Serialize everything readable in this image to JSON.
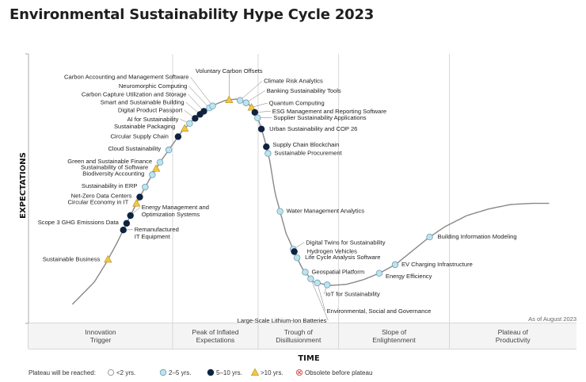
{
  "header": {
    "title": "Environmental Sustainability Hype Cycle 2023"
  },
  "chart_data": {
    "type": "hype-cycle",
    "xlabel": "TIME",
    "ylabel": "EXPECTATIONS",
    "as_of": "As of August 2023",
    "phases": [
      "Innovation Trigger",
      "Peak of Inflated Expectations",
      "Trough of Disillusionment",
      "Slope of Enlightenment",
      "Plateau of Productivity"
    ],
    "legend": {
      "title": "Plateau will be reached:",
      "items": [
        {
          "key": "lt2",
          "label": "<2 yrs."
        },
        {
          "key": "2to5",
          "label": "2–5 yrs."
        },
        {
          "key": "5to10",
          "label": "5–10 yrs."
        },
        {
          "key": "gt10",
          "label": ">10 yrs."
        },
        {
          "key": "obsolete",
          "label": "Obsolete before plateau"
        }
      ]
    },
    "colors": {
      "lt2": "#ffffff",
      "2to5": "#bfe3ee",
      "5to10": "#0e2340",
      "gt10": "#f2c744",
      "obsolete": "#e04444",
      "curve": "#888888"
    },
    "technologies": [
      {
        "name": "Sustainable Business",
        "t": 0.145,
        "class": "gt10"
      },
      {
        "name": "Remanufactured IT Equipment",
        "t": 0.173,
        "class": "5to10"
      },
      {
        "name": "Scope 3 GHG Emissions Data",
        "t": 0.179,
        "class": "5to10"
      },
      {
        "name": "Energy Management and Optimization Systems",
        "t": 0.186,
        "class": "5to10"
      },
      {
        "name": "Circular Economy in IT",
        "t": 0.197,
        "class": "gt10"
      },
      {
        "name": "Net-Zero Data Centers",
        "t": 0.203,
        "class": "5to10"
      },
      {
        "name": "Sustainability in ERP",
        "t": 0.213,
        "class": "2to5"
      },
      {
        "name": "Biodiversity Accounting",
        "t": 0.226,
        "class": "2to5"
      },
      {
        "name": "Sustainability of Software",
        "t": 0.233,
        "class": "gt10"
      },
      {
        "name": "Green and Sustainable Finance",
        "t": 0.24,
        "class": "2to5"
      },
      {
        "name": "Cloud Sustainability",
        "t": 0.256,
        "class": "2to5"
      },
      {
        "name": "Circular Supply Chain",
        "t": 0.273,
        "class": "5to10"
      },
      {
        "name": "Sustainable Packaging",
        "t": 0.285,
        "class": "gt10"
      },
      {
        "name": "AI for Sustainability",
        "t": 0.294,
        "class": "2to5"
      },
      {
        "name": "Digital Product Passport",
        "t": 0.304,
        "class": "5to10"
      },
      {
        "name": "Smart and Sustainable Building",
        "t": 0.313,
        "class": "5to10"
      },
      {
        "name": "Carbon Capture Utilization and Storage",
        "t": 0.32,
        "class": "5to10"
      },
      {
        "name": "Neuromorphic Computing",
        "t": 0.33,
        "class": "2to5"
      },
      {
        "name": "Carbon Accounting and Management Software",
        "t": 0.336,
        "class": "2to5"
      },
      {
        "name": "Voluntary Carbon Offsets",
        "t": 0.366,
        "class": "gt10"
      },
      {
        "name": "Climate Risk Analytics",
        "t": 0.386,
        "class": "2to5"
      },
      {
        "name": "Banking Sustainability Tools",
        "t": 0.397,
        "class": "2to5"
      },
      {
        "name": "Quantum Computing",
        "t": 0.407,
        "class": "gt10"
      },
      {
        "name": "ESG Management and Reporting Software",
        "t": 0.413,
        "class": "5to10"
      },
      {
        "name": "Supplier Sustainability Applications",
        "t": 0.418,
        "class": "2to5"
      },
      {
        "name": "Urban Sustainability and COP 26",
        "t": 0.425,
        "class": "5to10"
      },
      {
        "name": "Supply Chain Blockchain",
        "t": 0.434,
        "class": "5to10"
      },
      {
        "name": "Sustainable Procurement",
        "t": 0.437,
        "class": "2to5"
      },
      {
        "name": "Water Management Analytics",
        "t": 0.459,
        "class": "2to5"
      },
      {
        "name": "Digital Twins for Sustainability",
        "t": 0.483,
        "class": "2to5"
      },
      {
        "name": "Hydrogen Vehicles",
        "t": 0.485,
        "class": "5to10"
      },
      {
        "name": "Life Cycle Analysis Software",
        "t": 0.49,
        "class": "2to5"
      },
      {
        "name": "Geospatial Platform",
        "t": 0.505,
        "class": "2to5"
      },
      {
        "name": "Large-Scale Lithium-Ion Batteries",
        "t": 0.515,
        "class": "2to5"
      },
      {
        "name": "Environmental, Social and Governance",
        "t": 0.527,
        "class": "2to5"
      },
      {
        "name": "IoT for Sustainability",
        "t": 0.545,
        "class": "2to5"
      },
      {
        "name": "Energy Efficiency",
        "t": 0.64,
        "class": "2to5"
      },
      {
        "name": "EV Charging Infrastructure",
        "t": 0.669,
        "class": "2to5"
      },
      {
        "name": "Building Information Modeling",
        "t": 0.732,
        "class": "2to5"
      }
    ]
  }
}
